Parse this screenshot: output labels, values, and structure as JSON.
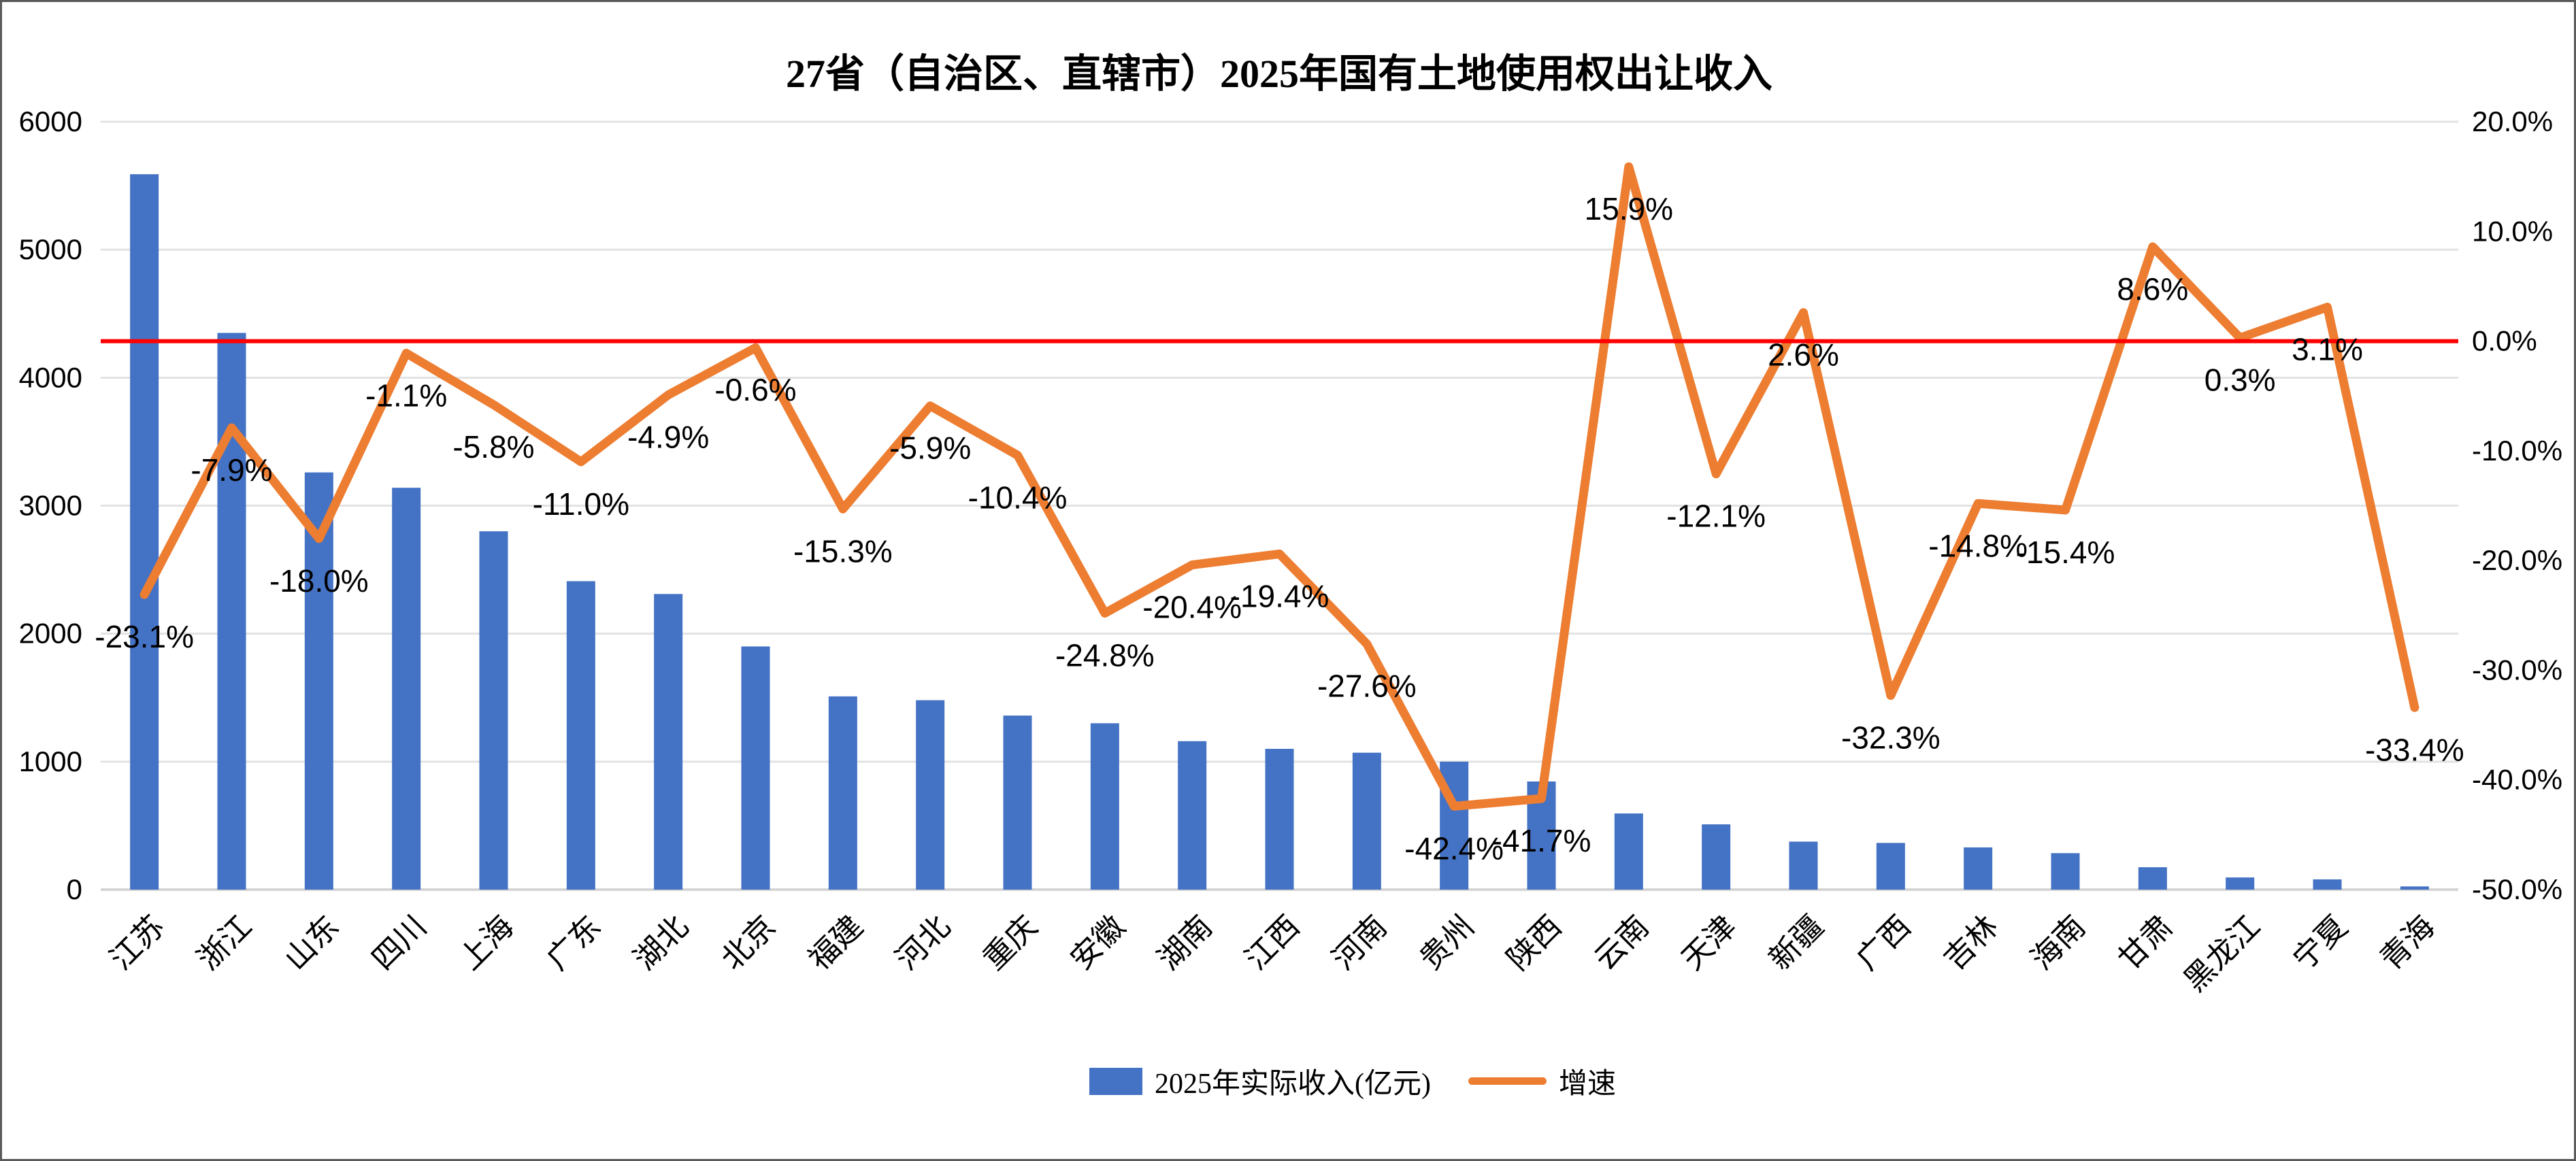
{
  "title": "27省（自治区、直辖市）2025年国有土地使用权出让收入",
  "colors": {
    "bar": "#4472C4",
    "line": "#ED7D31",
    "zero_reference_line": "#FF0000",
    "gridline": "#E2E2E2",
    "axis_line": "#D5D5D5",
    "text": "#000000",
    "frame_border": "#595959"
  },
  "legend": {
    "bar_label": "2025年实际收入(亿元)",
    "line_label": "增速"
  },
  "left_axis": {
    "ticks": [
      "0",
      "1000",
      "2000",
      "3000",
      "4000",
      "5000",
      "6000"
    ],
    "min": 0,
    "max": 6000,
    "step": 1000
  },
  "right_axis": {
    "ticks": [
      "20.0%",
      "10.0%",
      "0.0%",
      "-10.0%",
      "-20.0%",
      "-30.0%",
      "-40.0%",
      "-50.0%"
    ],
    "min": -50,
    "max": 20,
    "step": 10
  },
  "chart_data": {
    "type": "bar+line",
    "title": "27省（自治区、直辖市）2025年国有土地使用权出让收入",
    "categories": [
      "江苏",
      "浙江",
      "山东",
      "四川",
      "上海",
      "广东",
      "湖北",
      "北京",
      "福建",
      "河北",
      "重庆",
      "安徽",
      "湖南",
      "江西",
      "河南",
      "贵州",
      "陕西",
      "云南",
      "天津",
      "新疆",
      "广西",
      "吉林",
      "海南",
      "甘肃",
      "黑龙江",
      "宁夏",
      "青海"
    ],
    "series": [
      {
        "name": "2025年实际收入(亿元)",
        "type": "bar",
        "axis": "left",
        "color": "#4472C4",
        "values": [
          5590,
          4350,
          3260,
          3140,
          2800,
          2410,
          2310,
          1900,
          1510,
          1480,
          1360,
          1300,
          1160,
          1100,
          1070,
          1000,
          845,
          595,
          510,
          375,
          365,
          330,
          285,
          175,
          95,
          80,
          25
        ]
      },
      {
        "name": "增速",
        "type": "line",
        "axis": "right",
        "color": "#ED7D31",
        "values": [
          -23.1,
          -7.9,
          -18.0,
          -1.1,
          -5.8,
          -11.0,
          -4.9,
          -0.6,
          -15.3,
          -5.9,
          -10.4,
          -24.8,
          -20.4,
          -19.4,
          -27.6,
          -42.4,
          -41.7,
          15.9,
          -12.1,
          2.6,
          -32.3,
          -14.8,
          -15.4,
          8.6,
          0.3,
          3.1,
          -33.4
        ],
        "labels": [
          "-23.1%",
          "-7.9%",
          "-18.0%",
          "-1.1%",
          "-5.8%",
          "-11.0%",
          "-4.9%",
          "-0.6%",
          "-15.3%",
          "-5.9%",
          "-10.4%",
          "-24.8%",
          "-20.4%",
          "-19.4%",
          "-27.6%",
          "-42.4%",
          "-41.7%",
          "15.9%",
          "-12.1%",
          "2.6%",
          "-32.3%",
          "-14.8%",
          "-15.4%",
          "8.6%",
          "0.3%",
          "3.1%",
          "-33.4%"
        ]
      }
    ],
    "reference_line": {
      "axis": "right",
      "value": 0,
      "color": "#FF0000"
    },
    "left_axis_range": [
      0,
      6000
    ],
    "right_axis_range": [
      -50,
      20
    ],
    "grid": true,
    "legend_position": "bottom"
  }
}
